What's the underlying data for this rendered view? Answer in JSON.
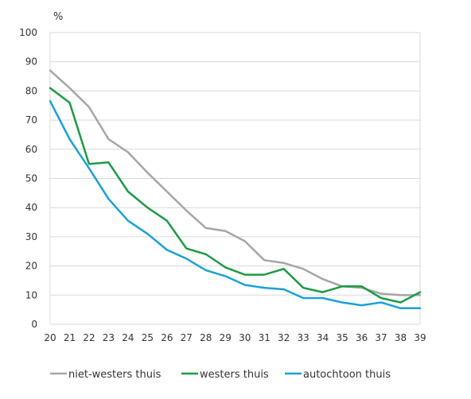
{
  "chart_data": {
    "type": "line",
    "title": "",
    "xlabel": "",
    "ylabel": "%",
    "ylim": [
      0,
      100
    ],
    "yticks": [
      "0",
      "10",
      "20",
      "30",
      "40",
      "50",
      "60",
      "70",
      "80",
      "90",
      "100"
    ],
    "x": [
      "20",
      "21",
      "22",
      "23",
      "24",
      "25",
      "26",
      "27",
      "28",
      "29",
      "30",
      "31",
      "32",
      "33",
      "34",
      "35",
      "36",
      "37",
      "38",
      "39"
    ],
    "grid": true,
    "legend": "bottom",
    "series": [
      {
        "name": "niet-westers thuis",
        "color": "#a6a6a6",
        "values": [
          87,
          81,
          74.5,
          63.5,
          59,
          52,
          45.5,
          39,
          33,
          32,
          28.5,
          22,
          21,
          19,
          15.5,
          13,
          12.5,
          10.5,
          10,
          10
        ]
      },
      {
        "name": "westers thuis",
        "color": "#1e9a45",
        "values": [
          81,
          76,
          55,
          55.5,
          45.5,
          40,
          35.5,
          26,
          24,
          19.5,
          17,
          17,
          19,
          12.5,
          11,
          13,
          13,
          9,
          7.5,
          11
        ]
      },
      {
        "name": "autochtoon thuis",
        "color": "#1ba1d6",
        "values": [
          76.5,
          63.5,
          53.5,
          43,
          35.5,
          31,
          25.5,
          22.5,
          18.5,
          16.5,
          13.5,
          12.5,
          12,
          9,
          9,
          7.5,
          6.5,
          7.5,
          5.5,
          5.5
        ]
      }
    ]
  }
}
